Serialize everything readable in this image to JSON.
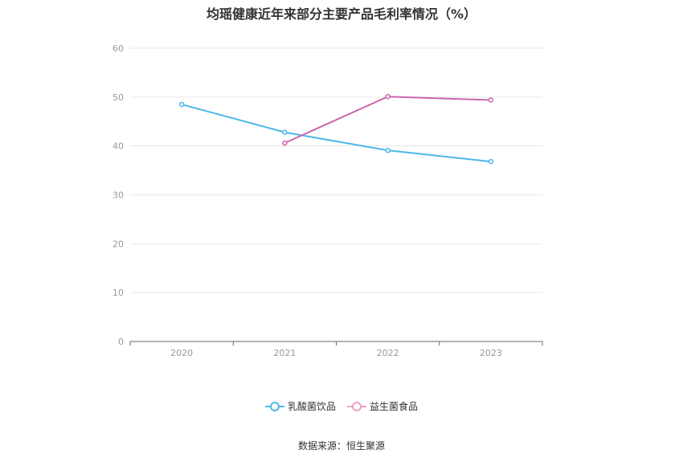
{
  "chart_data": {
    "type": "line",
    "title": "均瑶健康近年来部分主要产品毛利率情况（%）",
    "x": [
      "2020",
      "2021",
      "2022",
      "2023"
    ],
    "series": [
      {
        "name": "乳酸菌饮品",
        "color": "#4db8e8",
        "values": [
          48.5,
          42.8,
          39.1,
          36.8
        ]
      },
      {
        "name": "益生菌食品",
        "color": "#cc66aa",
        "legend_color": "#e8a0c8",
        "values": [
          null,
          40.6,
          50.1,
          49.4
        ]
      }
    ],
    "yticks": [
      "0",
      "10",
      "20",
      "30",
      "40",
      "50",
      "60"
    ],
    "ylim": [
      0,
      60
    ],
    "grid": true,
    "legend": "bottom"
  },
  "source": "数据来源：恒生聚源"
}
